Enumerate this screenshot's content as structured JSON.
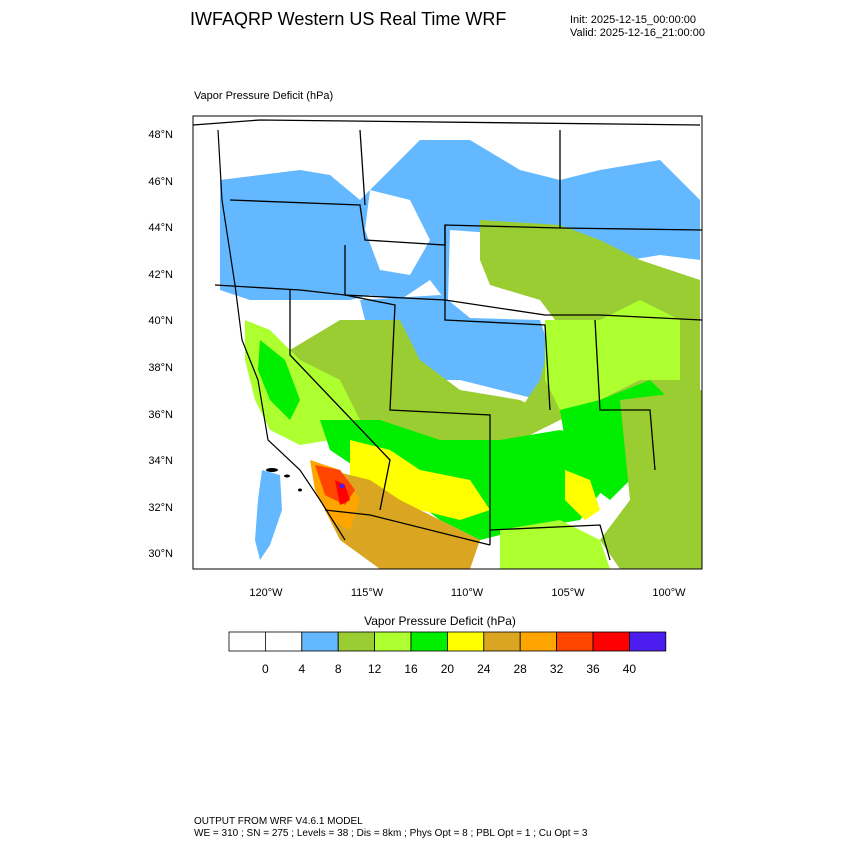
{
  "header": {
    "title": "IWFAQRP Western US Real Time WRF",
    "init": "Init: 2025-12-15_00:00:00",
    "valid": "Valid: 2025-12-16_21:00:00"
  },
  "plot": {
    "field_label": "Vapor Pressure Deficit   (hPa)",
    "lat_labels": [
      "48°N",
      "46°N",
      "44°N",
      "42°N",
      "40°N",
      "38°N",
      "36°N",
      "34°N",
      "32°N",
      "30°N"
    ],
    "lon_labels": [
      "120°W",
      "115°W",
      "110°W",
      "105°W",
      "100°W"
    ]
  },
  "colorbar": {
    "title": "Vapor Pressure Deficit  (hPa)",
    "labels": [
      "0",
      "4",
      "8",
      "12",
      "16",
      "20",
      "24",
      "28",
      "32",
      "36",
      "40"
    ],
    "colors": [
      "#ffffff",
      "#ffffff",
      "#63b8ff",
      "#9acd32",
      "#adff2f",
      "#00ee00",
      "#ffff00",
      "#daa520",
      "#ffa500",
      "#ff4500",
      "#ff0000",
      "#4b1dee"
    ]
  },
  "footer": {
    "line1": "OUTPUT FROM WRF V4.6.1 MODEL",
    "line2": "WE = 310 ; SN = 275 ; Levels = 38 ; Dis = 8km ; Phys Opt = 8 ; PBL Opt = 1 ; Cu Opt = 3"
  },
  "map_colors": {
    "white": "#ffffff",
    "blue": "#63b8ff",
    "olive": "#9acd32",
    "lime": "#adff2f",
    "green": "#00ee00",
    "yellow": "#ffff00",
    "gold": "#daa520",
    "orange": "#ffa500",
    "red_orange": "#ff4500",
    "red": "#ff0000",
    "purple": "#4b1dee",
    "border": "#000000"
  }
}
